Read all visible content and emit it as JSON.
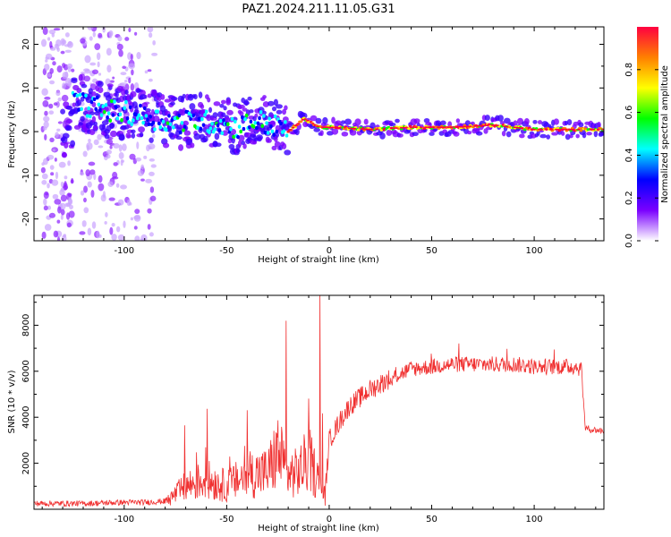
{
  "title": "PAZ1.2024.211.11.05.G31",
  "colors": {
    "snr_line": "#f03030",
    "axis": "#000000"
  },
  "chart_data": [
    {
      "type": "heatmap",
      "title": "PAZ1.2024.211.11.05.G31",
      "xlabel": "Height of straight line (km)",
      "ylabel": "Frequency (Hz)",
      "xlim": [
        -144,
        134
      ],
      "ylim": [
        -25,
        24
      ],
      "x_ticks": [
        -100,
        -50,
        0,
        50,
        100
      ],
      "y_ticks": [
        -20,
        -10,
        0,
        10,
        20
      ],
      "colorbar": {
        "label": "Normalized spectral amplitude",
        "range": [
          0,
          1
        ],
        "ticks": [
          0.0,
          0.2,
          0.4,
          0.6,
          0.8
        ],
        "colormap": [
          "#ffffff",
          "#7a00ff",
          "#0000ff",
          "#00ffff",
          "#00ff00",
          "#ffff00",
          "#ff8000",
          "#ff0040"
        ]
      },
      "ridge": {
        "x": [
          -125,
          -110,
          -95,
          -85,
          -75,
          -65,
          -55,
          -45,
          -35,
          -25,
          -20,
          -12,
          -5,
          0,
          20,
          40,
          60,
          80,
          100,
          120,
          134
        ],
        "y": [
          7,
          5,
          4,
          3,
          2,
          2.5,
          2,
          1,
          2.5,
          1,
          0,
          3,
          1,
          1,
          0.5,
          1,
          1,
          1.5,
          0.5,
          0.5,
          0.5
        ]
      }
    },
    {
      "type": "line",
      "xlabel": "Height of straight line (km)",
      "ylabel": "SNR (10 * v/v)",
      "xlim": [
        -144,
        134
      ],
      "ylim": [
        0,
        9300
      ],
      "x_ticks": [
        -100,
        -50,
        0,
        50,
        100
      ],
      "y_ticks": [
        2000,
        4000,
        6000,
        8000
      ],
      "series": [
        {
          "x": [
            -144,
            -120,
            -100,
            -90,
            -80,
            -70,
            -60,
            -50,
            -40,
            -30,
            -25,
            -20,
            -15,
            -10,
            -5,
            -2,
            0,
            5,
            10,
            20,
            30,
            40,
            50,
            60,
            70,
            80,
            90,
            100,
            110,
            120,
            123,
            125,
            134
          ],
          "values": [
            200,
            200,
            250,
            250,
            300,
            1000,
            1300,
            1000,
            1500,
            1600,
            2500,
            1500,
            1600,
            2200,
            1200,
            600,
            3000,
            3800,
            4500,
            5200,
            5700,
            6100,
            6200,
            6300,
            6300,
            6300,
            6300,
            6200,
            6200,
            6200,
            6100,
            3500,
            3400
          ]
        }
      ]
    }
  ]
}
